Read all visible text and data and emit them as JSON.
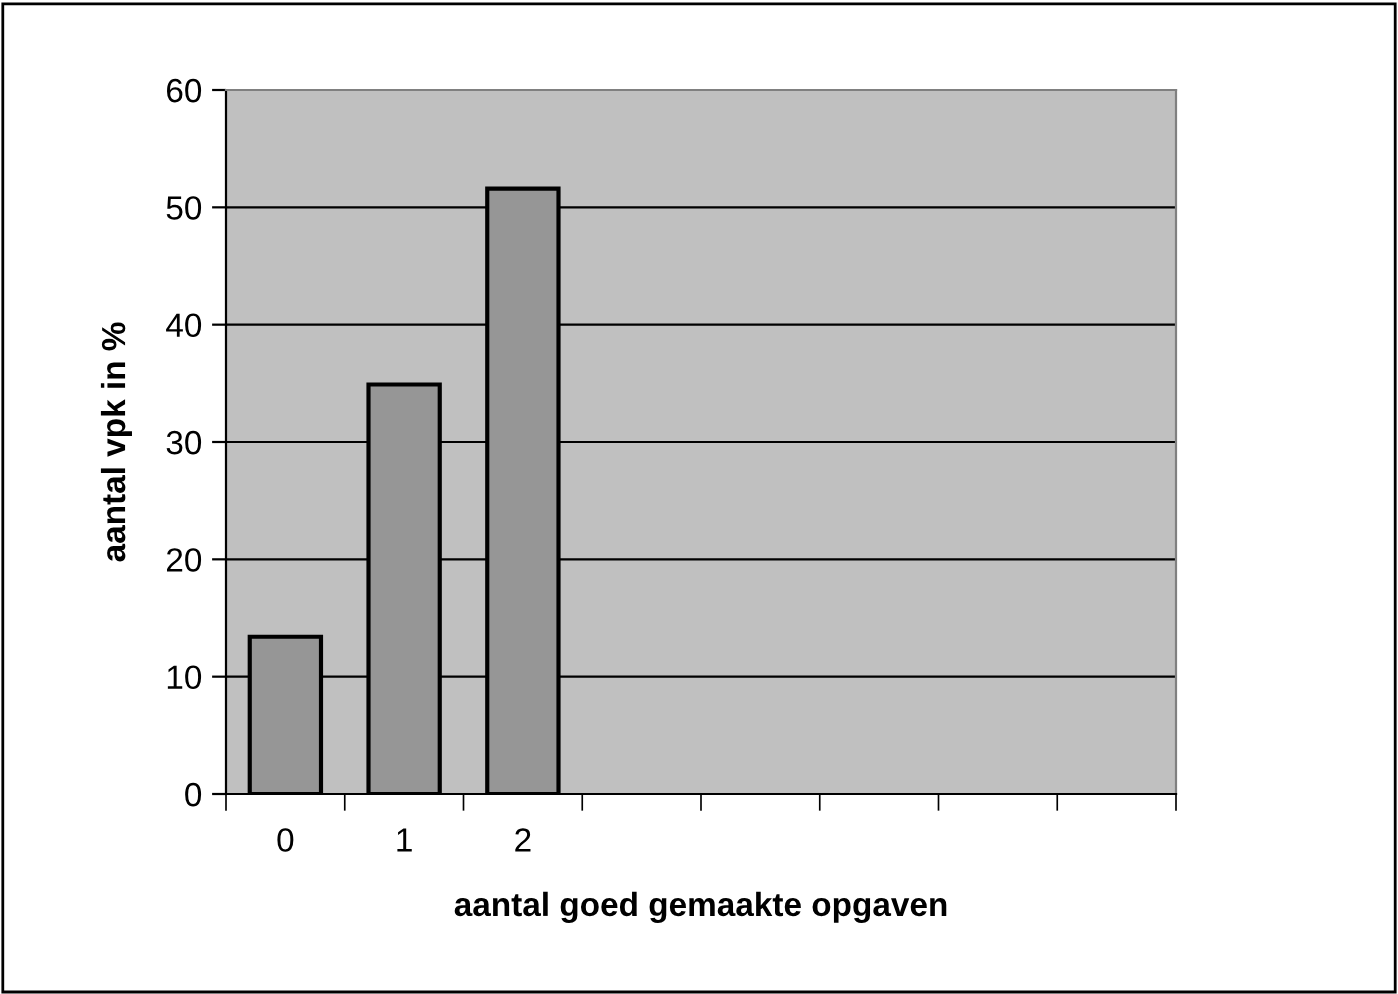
{
  "chart_data": {
    "type": "bar",
    "xlabel": "aantal goed gemaakte opgaven",
    "ylabel": "aantal vpk in %",
    "categories": [
      "0",
      "1",
      "2",
      null,
      null,
      null,
      null,
      null
    ],
    "values": [
      13.4,
      34.9,
      51.6,
      null,
      null,
      null,
      null,
      null
    ],
    "color": "#969696",
    "ylim": [
      0,
      60
    ],
    "yticks": [
      0,
      10,
      20,
      30,
      40,
      50,
      60
    ],
    "grid": "y"
  }
}
